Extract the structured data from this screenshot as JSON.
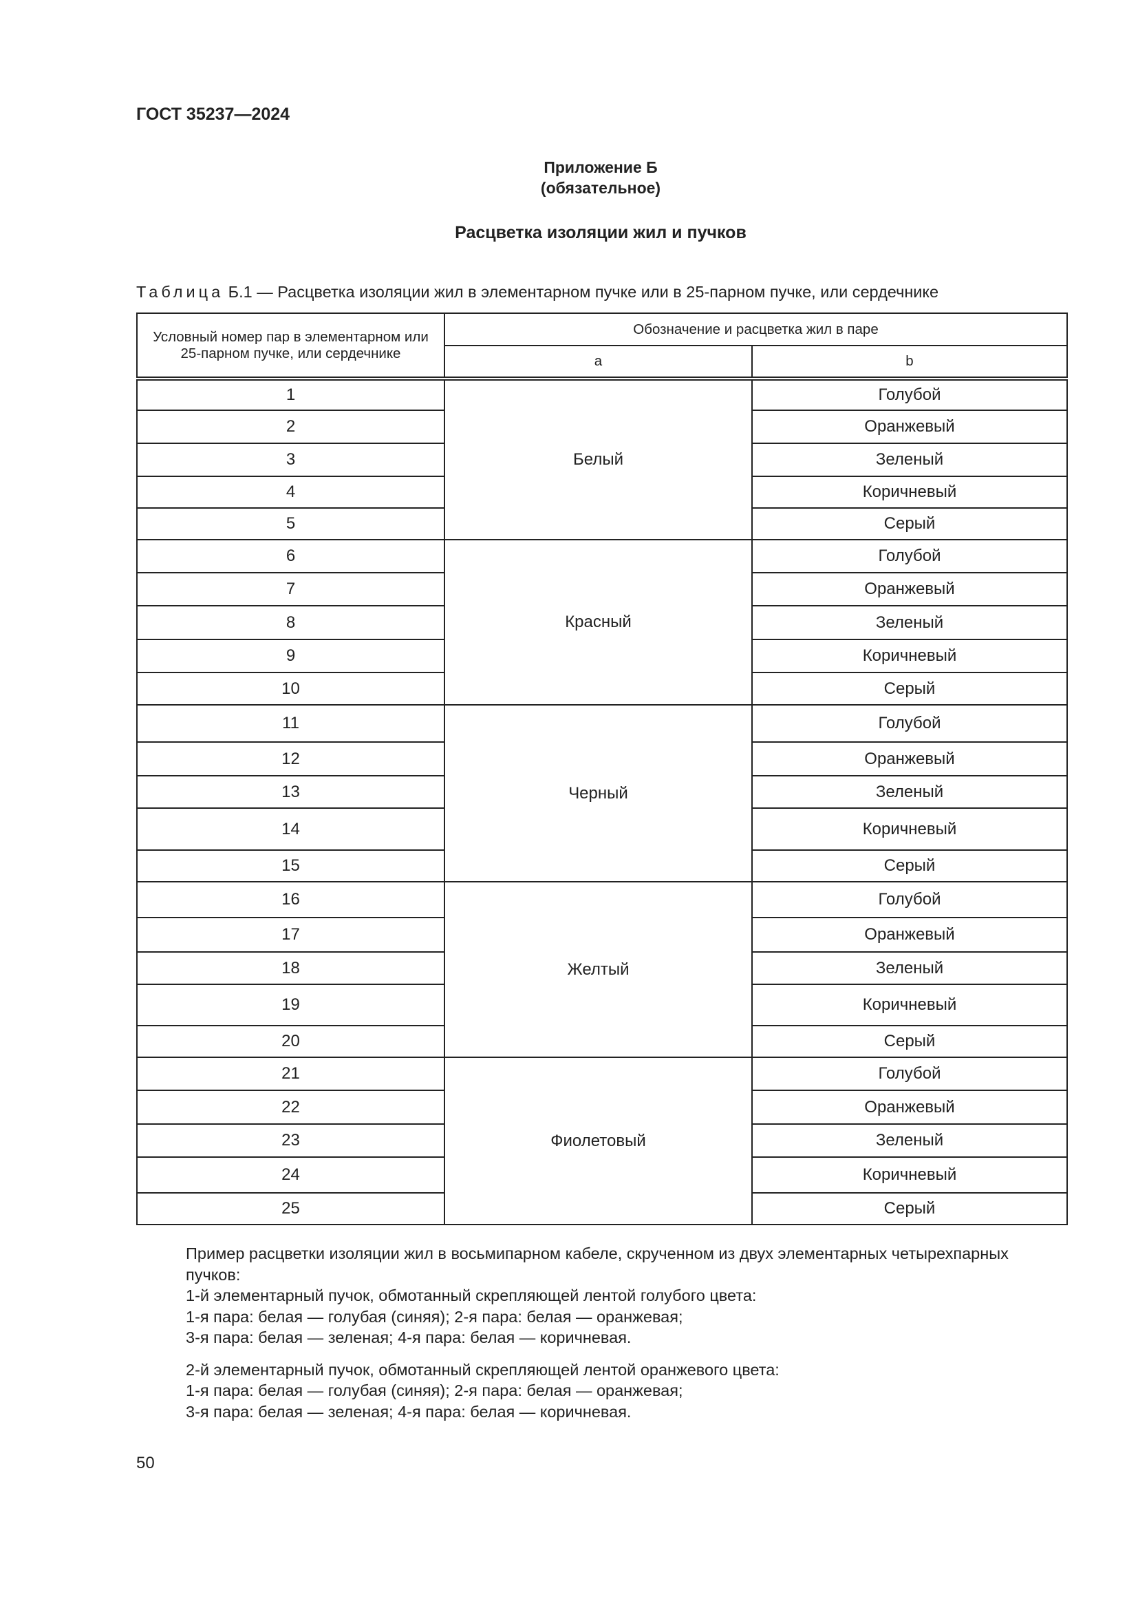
{
  "header": {
    "doc_code": "ГОСТ 35237—2024"
  },
  "annex": {
    "title": "Приложение Б",
    "status": "(обязательное)",
    "section_title": "Расцветка изоляции жил и пучков"
  },
  "table": {
    "caption_label": "Таблица",
    "caption_text": " Б.1 — Расцветка изоляции жил в элементарном пучке или в 25-парном пучке, или сердечнике",
    "col1_header": "Условный номер пар в элементарном или 25-парном пучке, или сердечнике",
    "group_header": "Обозначение и расцветка жил в паре",
    "col_a_header": "a",
    "col_b_header": "b",
    "groups": [
      {
        "a": "Белый",
        "rows": [
          {
            "n": "1",
            "b": "Голубой"
          },
          {
            "n": "2",
            "b": "Оранжевый"
          },
          {
            "n": "3",
            "b": "Зеленый"
          },
          {
            "n": "4",
            "b": "Коричневый"
          },
          {
            "n": "5",
            "b": "Серый"
          }
        ]
      },
      {
        "a": "Красный",
        "rows": [
          {
            "n": "6",
            "b": "Голубой"
          },
          {
            "n": "7",
            "b": "Оранжевый"
          },
          {
            "n": "8",
            "b": "Зеленый"
          },
          {
            "n": "9",
            "b": "Коричневый"
          },
          {
            "n": "10",
            "b": "Серый"
          }
        ]
      },
      {
        "a": "Черный",
        "rows": [
          {
            "n": "11",
            "b": "Голубой"
          },
          {
            "n": "12",
            "b": "Оранжевый"
          },
          {
            "n": "13",
            "b": "Зеленый"
          },
          {
            "n": "14",
            "b": "Коричневый"
          },
          {
            "n": "15",
            "b": "Серый"
          }
        ]
      },
      {
        "a": "Желтый",
        "rows": [
          {
            "n": "16",
            "b": "Голубой"
          },
          {
            "n": "17",
            "b": "Оранжевый"
          },
          {
            "n": "18",
            "b": "Зеленый"
          },
          {
            "n": "19",
            "b": "Коричневый"
          },
          {
            "n": "20",
            "b": "Серый"
          }
        ]
      },
      {
        "a": "Фиолетовый",
        "rows": [
          {
            "n": "21",
            "b": "Голубой"
          },
          {
            "n": "22",
            "b": "Оранжевый"
          },
          {
            "n": "23",
            "b": "Зеленый"
          },
          {
            "n": "24",
            "b": "Коричневый"
          },
          {
            "n": "25",
            "b": "Серый"
          }
        ]
      }
    ]
  },
  "example": {
    "intro": "Пример расцветки изоляции жил в восьмипарном кабеле, скрученном из двух элементарных четырехпарных пучков:",
    "bundle1": "1-й элементарный пучок, обмотанный скрепляющей лентой голубого цвета:",
    "bundle1_line1": "1-я пара: белая — голубая (синяя); 2-я пара: белая — оранжевая;",
    "bundle1_line2": "3-я пара: белая — зеленая; 4-я пара: белая — коричневая.",
    "bundle2": "2-й элементарный пучок, обмотанный скрепляющей лентой оранжевого цвета:",
    "bundle2_line1": "1-я пара: белая — голубая (синяя); 2-я пара: белая — оранжевая;",
    "bundle2_line2": "3-я пара: белая — зеленая; 4-я пара: белая — коричневая."
  },
  "footer": {
    "page_number": "50"
  }
}
